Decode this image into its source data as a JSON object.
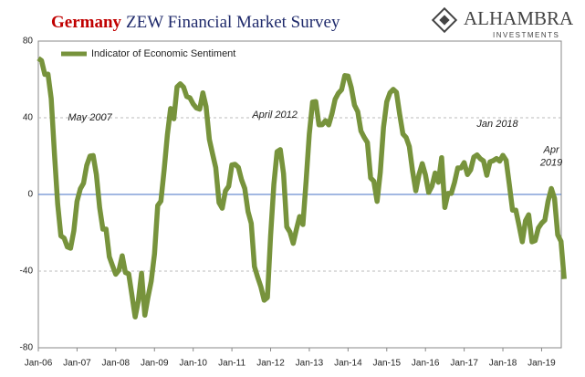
{
  "chart_data": {
    "type": "line",
    "title_prefix": "Germany",
    "title": "ZEW Financial Market Survey",
    "logo": {
      "name": "ALHAMBRA",
      "tagline": "INVESTMENTS"
    },
    "categories": [
      "Jan-06",
      null,
      null,
      null,
      null,
      null,
      null,
      null,
      null,
      null,
      null,
      null,
      "Jan-07",
      null,
      null,
      null,
      null,
      null,
      null,
      null,
      null,
      null,
      null,
      null,
      "Jan-08",
      null,
      null,
      null,
      null,
      null,
      null,
      null,
      null,
      null,
      null,
      null,
      "Jan-09",
      null,
      null,
      null,
      null,
      null,
      null,
      null,
      null,
      null,
      null,
      null,
      "Jan-10",
      null,
      null,
      null,
      null,
      null,
      null,
      null,
      null,
      null,
      null,
      null,
      "Jan-11",
      null,
      null,
      null,
      null,
      null,
      null,
      null,
      null,
      null,
      null,
      null,
      "Jan-12",
      null,
      null,
      null,
      null,
      null,
      null,
      null,
      null,
      null,
      null,
      null,
      "Jan-13",
      null,
      null,
      null,
      null,
      null,
      null,
      null,
      null,
      null,
      null,
      null,
      "Jan-14",
      null,
      null,
      null,
      null,
      null,
      null,
      null,
      null,
      null,
      null,
      null,
      "Jan-15",
      null,
      null,
      null,
      null,
      null,
      null,
      null,
      null,
      null,
      null,
      null,
      "Jan-16",
      null,
      null,
      null,
      null,
      null,
      null,
      null,
      null,
      null,
      null,
      null,
      "Jan-17",
      null,
      null,
      null,
      null,
      null,
      null,
      null,
      null,
      null,
      null,
      null,
      "Jan-18",
      null,
      null,
      null,
      null,
      null,
      null,
      null,
      null,
      null,
      null,
      null,
      "Jan-19",
      null,
      null,
      null,
      null,
      null,
      null,
      null
    ],
    "series": [
      {
        "name": "Indicator of Economic Sentiment",
        "color": "#77933c",
        "values": [
          71.0,
          69.8,
          62.6,
          62.7,
          50.0,
          21.0,
          -5.0,
          -21.6,
          -22.8,
          -27.4,
          -28.1,
          -19.0,
          -3.6,
          2.9,
          5.8,
          15.1,
          20.0,
          20.3,
          10.4,
          -6.9,
          -18.1,
          -18.1,
          -32.5,
          -37.2,
          -41.6,
          -39.5,
          -32.0,
          -40.7,
          -41.4,
          -52.4,
          -63.9,
          -55.5,
          -41.1,
          -63.0,
          -53.5,
          -45.2,
          -31.0,
          -5.8,
          -3.5,
          13.0,
          31.1,
          44.8,
          39.5,
          56.1,
          57.7,
          56.0,
          51.1,
          50.4,
          47.2,
          45.1,
          44.5,
          53.0,
          45.8,
          28.7,
          21.2,
          14.0,
          -4.3,
          -7.2,
          1.8,
          4.3,
          15.4,
          15.7,
          14.1,
          7.6,
          3.1,
          -9.0,
          -15.1,
          -37.6,
          -43.3,
          -48.3,
          -55.2,
          -53.8,
          -21.6,
          5.4,
          22.3,
          23.4,
          10.8,
          -16.9,
          -19.6,
          -25.5,
          -18.2,
          -11.5,
          -15.7,
          6.9,
          31.5,
          48.2,
          48.5,
          36.3,
          36.4,
          38.5,
          36.3,
          42.0,
          49.6,
          52.8,
          54.6,
          62.0,
          61.7,
          55.7,
          46.6,
          43.2,
          33.1,
          29.8,
          27.1,
          8.6,
          6.9,
          -3.6,
          11.5,
          34.9,
          48.4,
          53.0,
          54.8,
          53.3,
          41.9,
          31.5,
          29.7,
          25.0,
          12.1,
          1.9,
          10.4,
          16.1,
          10.2,
          1.0,
          4.3,
          11.2,
          6.4,
          19.2,
          -6.8,
          0.5,
          0.5,
          6.2,
          13.8,
          13.8,
          16.6,
          10.4,
          12.8,
          19.5,
          20.6,
          18.6,
          17.5,
          10.0,
          17.0,
          17.6,
          18.7,
          17.4,
          20.4,
          17.8,
          5.1,
          -8.2,
          -8.2,
          -16.1,
          -24.7,
          -13.7,
          -10.6,
          -24.7,
          -24.1,
          -17.5,
          -15.0,
          -13.4,
          -3.6,
          3.1,
          -2.1,
          -21.1,
          -24.5,
          -44.1
        ]
      }
    ],
    "ylim": [
      -80,
      80
    ],
    "yticks": [
      -80,
      -40,
      0,
      40,
      80
    ],
    "grid": true,
    "zero_line_color": "#4472c4",
    "legend": "top-left",
    "annotations": [
      {
        "text": "May 2007",
        "index": 16,
        "value": 20.0
      },
      {
        "text": "April 2012",
        "index": 75,
        "value": 23.4
      },
      {
        "text": "Jan 2018",
        "index": 144,
        "value": 20.4
      },
      {
        "text": "Apr\n2019",
        "index": 159,
        "value": 3.1
      }
    ]
  }
}
